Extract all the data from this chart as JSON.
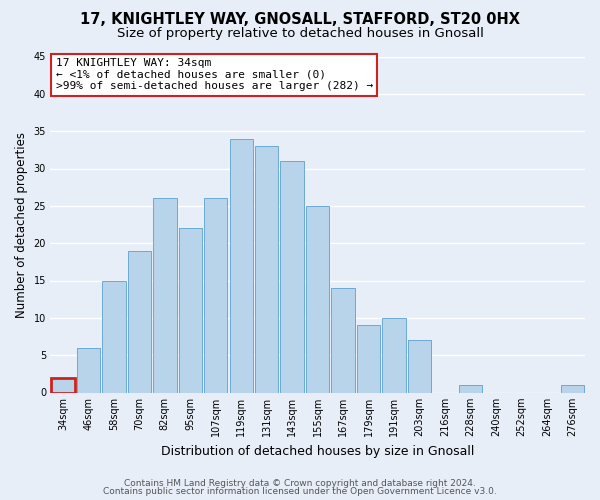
{
  "title": "17, KNIGHTLEY WAY, GNOSALL, STAFFORD, ST20 0HX",
  "subtitle": "Size of property relative to detached houses in Gnosall",
  "xlabel": "Distribution of detached houses by size in Gnosall",
  "ylabel": "Number of detached properties",
  "categories": [
    "34sqm",
    "46sqm",
    "58sqm",
    "70sqm",
    "82sqm",
    "95sqm",
    "107sqm",
    "119sqm",
    "131sqm",
    "143sqm",
    "155sqm",
    "167sqm",
    "179sqm",
    "191sqm",
    "203sqm",
    "216sqm",
    "228sqm",
    "240sqm",
    "252sqm",
    "264sqm",
    "276sqm"
  ],
  "values": [
    2,
    6,
    15,
    19,
    26,
    22,
    26,
    34,
    33,
    31,
    25,
    14,
    9,
    10,
    7,
    0,
    1,
    0,
    0,
    0,
    1
  ],
  "bar_color": "#b8d4ea",
  "bar_edge_color": "#6aaad4",
  "highlight_index": 0,
  "highlight_bar_color": "#b8d4ea",
  "highlight_edge_color": "#cc2222",
  "annotation_text_line1": "17 KNIGHTLEY WAY: 34sqm",
  "annotation_text_line2": "← <1% of detached houses are smaller (0)",
  "annotation_text_line3": ">99% of semi-detached houses are larger (282) →",
  "ylim": [
    0,
    45
  ],
  "yticks": [
    0,
    5,
    10,
    15,
    20,
    25,
    30,
    35,
    40,
    45
  ],
  "footer_line1": "Contains HM Land Registry data © Crown copyright and database right 2024.",
  "footer_line2": "Contains public sector information licensed under the Open Government Licence v3.0.",
  "bg_color": "#e8eef8",
  "plot_bg_color": "#e8eef8",
  "grid_color": "#ffffff",
  "title_fontsize": 10.5,
  "subtitle_fontsize": 9.5,
  "tick_fontsize": 7,
  "ylabel_fontsize": 8.5,
  "xlabel_fontsize": 9,
  "annotation_fontsize": 8,
  "footer_fontsize": 6.5
}
